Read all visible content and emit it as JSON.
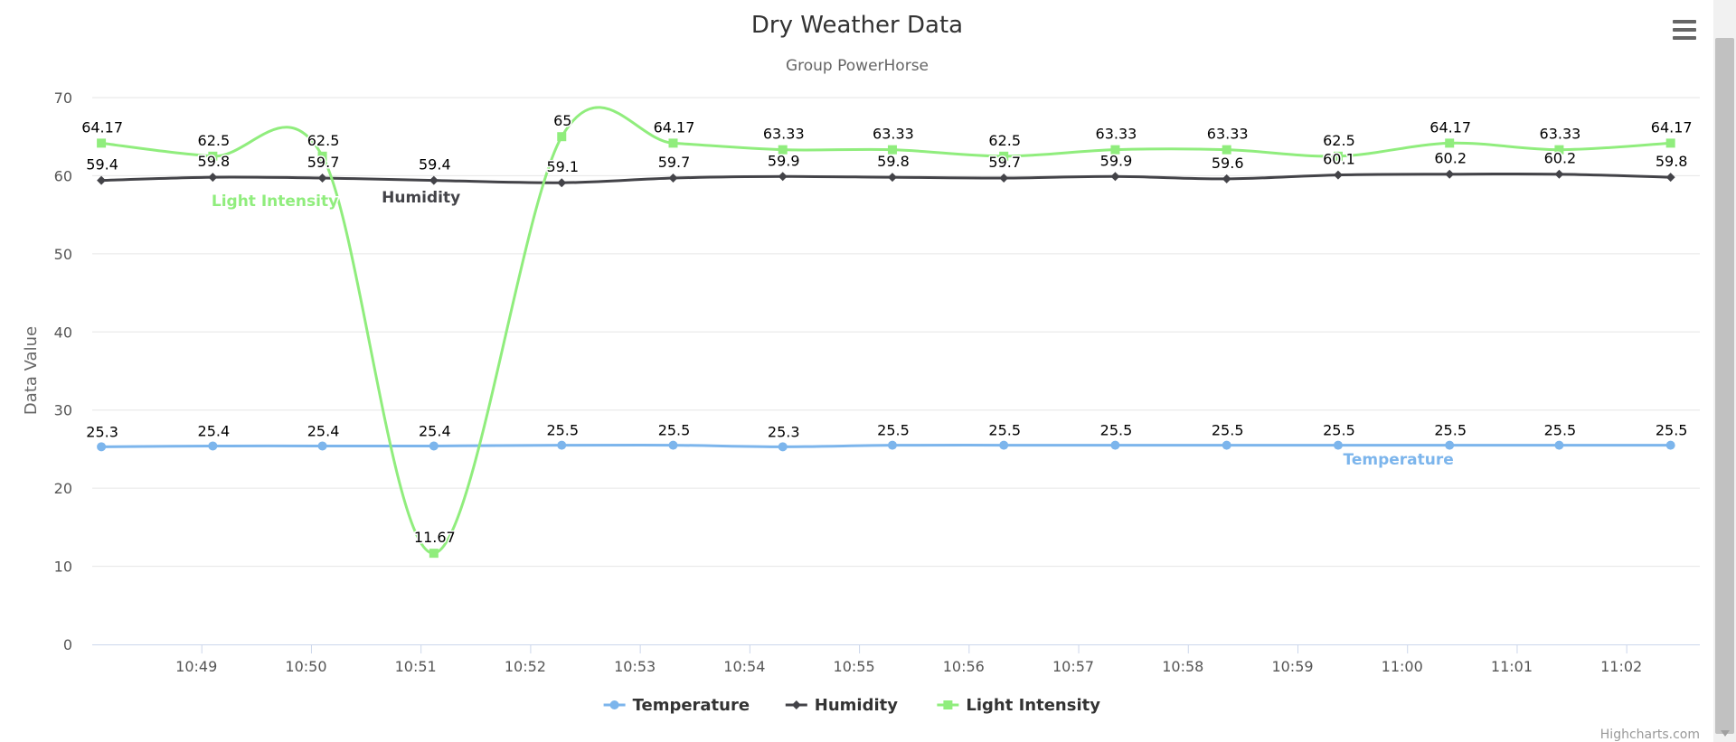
{
  "chart_data": {
    "type": "line",
    "title": "Dry Weather Data",
    "subtitle": "Group PowerHorse",
    "ylabel": "Data Value",
    "xlabel": "",
    "ylim": [
      0,
      70
    ],
    "yticks": [
      0,
      10,
      20,
      30,
      40,
      50,
      60,
      70
    ],
    "xlim": [
      "10:48:00",
      "11:02:40"
    ],
    "xtick_labels": [
      "10:49",
      "10:50",
      "10:51",
      "10:52",
      "10:53",
      "10:54",
      "10:55",
      "10:56",
      "10:57",
      "10:58",
      "10:59",
      "11:00",
      "11:01",
      "11:02"
    ],
    "x": [
      "10:48:05",
      "10:49:06",
      "10:50:06",
      "10:51:07",
      "10:52:17",
      "10:53:18",
      "10:54:18",
      "10:55:18",
      "10:56:19",
      "10:57:20",
      "10:58:21",
      "10:59:22",
      "11:00:23",
      "11:01:23",
      "11:02:24"
    ],
    "grid": true,
    "legend_position": "bottom-center",
    "series": [
      {
        "name": "Temperature",
        "color": "#7cb5ec",
        "marker": "circle",
        "values": [
          25.3,
          25.4,
          25.4,
          25.4,
          25.5,
          25.5,
          25.3,
          25.5,
          25.5,
          25.5,
          25.5,
          25.5,
          25.5,
          25.5,
          25.5
        ],
        "inline_label": "Temperature"
      },
      {
        "name": "Humidity",
        "color": "#434348",
        "marker": "diamond",
        "values": [
          59.4,
          59.8,
          59.7,
          59.4,
          59.1,
          59.7,
          59.9,
          59.8,
          59.7,
          59.9,
          59.6,
          60.1,
          60.2,
          60.2,
          59.8
        ],
        "inline_label": "Humidity"
      },
      {
        "name": "Light Intensity",
        "color": "#90ed7d",
        "marker": "square",
        "values": [
          64.17,
          62.5,
          62.5,
          11.67,
          65,
          64.17,
          63.33,
          63.33,
          62.5,
          63.33,
          63.33,
          62.5,
          64.17,
          63.33,
          64.17
        ],
        "inline_label": "Light Intensity"
      }
    ]
  },
  "ui": {
    "credits": "Highcharts.com",
    "menu_icon": "hamburger-menu-icon"
  }
}
